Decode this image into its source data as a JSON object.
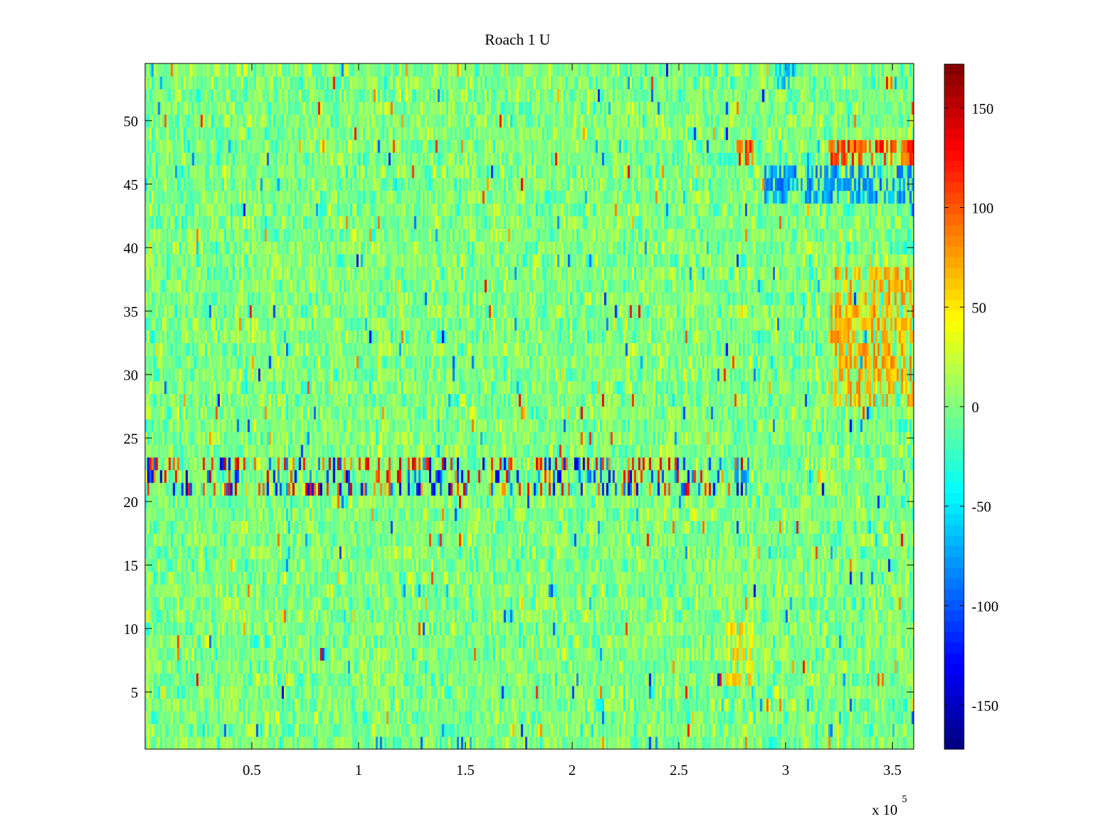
{
  "chart_data": {
    "type": "heatmap",
    "title": "Roach 1 U",
    "xlabel": "",
    "ylabel": "",
    "x_range": [
      0,
      360000
    ],
    "y_range": [
      0.5,
      54.5
    ],
    "x_ticks": [
      50000,
      100000,
      150000,
      200000,
      250000,
      300000,
      350000
    ],
    "x_tick_labels": [
      "0.5",
      "1",
      "1.5",
      "2",
      "2.5",
      "3",
      "3.5"
    ],
    "x_exponent_label": {
      "base": "x 10",
      "power": "5"
    },
    "y_ticks": [
      5,
      10,
      15,
      20,
      25,
      30,
      35,
      40,
      45,
      50
    ],
    "y_tick_labels": [
      "5",
      "10",
      "15",
      "20",
      "25",
      "30",
      "35",
      "40",
      "45",
      "50"
    ],
    "rows": 54,
    "columns_approx": 360,
    "colormap": "jet",
    "colorbar": {
      "range": [
        -172,
        172
      ],
      "ticks": [
        -150,
        -100,
        -50,
        0,
        50,
        100,
        150
      ],
      "tick_labels": [
        "-150",
        "-100",
        "-50",
        "0",
        "50",
        "100",
        "150"
      ]
    },
    "grid": false,
    "value_description": "mostly near 0 (green) with sparse positive and negative spikes",
    "highlighted_features": [
      {
        "rows": [
          21,
          23
        ],
        "x_range": [
          0,
          280000
        ],
        "character": "strong positive and negative stripes",
        "peak_values": [
          -150,
          150
        ]
      },
      {
        "rows": [
          47,
          48
        ],
        "x_range": [
          275000,
          285000
        ],
        "character": "positive",
        "peak_value": 140
      },
      {
        "rows": [
          47,
          48
        ],
        "x_range": [
          320000,
          360000
        ],
        "character": "positive",
        "peak_value": 140
      },
      {
        "rows": [
          44,
          46
        ],
        "x_range": [
          290000,
          360000
        ],
        "character": "negative",
        "peak_value": -100
      },
      {
        "rows": [
          21,
          23
        ],
        "x_range": [
          275000,
          283000
        ],
        "character": "negative",
        "peak_value": -90
      },
      {
        "rows": [
          28,
          38
        ],
        "x_range": [
          320000,
          360000
        ],
        "character": "positive",
        "peak_value": 90
      },
      {
        "rows": [
          6,
          10
        ],
        "x_range": [
          272000,
          285000
        ],
        "character": "positive",
        "peak_value": 70
      },
      {
        "rows": [
          53,
          54
        ],
        "x_range": [
          295000,
          305000
        ],
        "character": "negative",
        "peak_value": -90
      }
    ]
  }
}
